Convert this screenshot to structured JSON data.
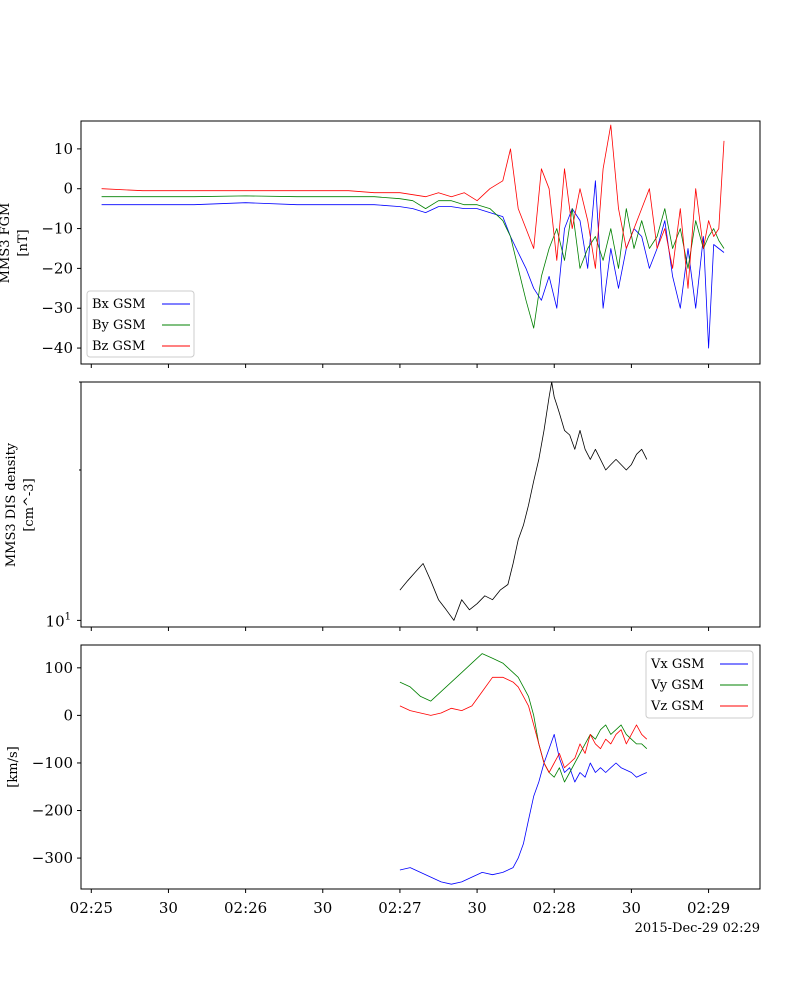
{
  "timestamp_label": "2015-Dec-29 02:29",
  "x_axis": {
    "tick_labels": [
      "02:25",
      "30",
      "02:26",
      "30",
      "02:27",
      "30",
      "02:28",
      "30",
      "02:29"
    ],
    "tick_seconds": [
      0,
      30,
      60,
      90,
      120,
      150,
      180,
      210,
      240
    ],
    "range_seconds": [
      -4,
      260
    ]
  },
  "chart_data": [
    {
      "type": "line",
      "ylabel_lines": [
        "MMS3 FGM",
        "[nT]"
      ],
      "ylim": [
        -44,
        17
      ],
      "yticks": [
        10,
        0,
        -10,
        -20,
        -30,
        -40
      ],
      "ytick_labels": [
        "10",
        "0",
        "−10",
        "−20",
        "−30",
        "−40"
      ],
      "legend_position": "lower-left",
      "series": [
        {
          "name": "Bx GSM",
          "color": "#0000ff",
          "x": [
            4,
            20,
            40,
            60,
            80,
            100,
            110,
            120,
            125,
            130,
            135,
            140,
            145,
            150,
            155,
            160,
            163,
            166,
            169,
            172,
            175,
            178,
            181,
            184,
            187,
            190,
            193,
            196,
            199,
            202,
            205,
            208,
            211,
            214,
            217,
            220,
            223,
            226,
            229,
            232,
            235,
            238,
            240,
            242,
            244,
            246
          ],
          "y": [
            -4,
            -4,
            -4,
            -3.5,
            -4,
            -4,
            -4,
            -4.5,
            -5,
            -6,
            -4.5,
            -4.5,
            -5,
            -5,
            -6,
            -7,
            -12,
            -16,
            -20,
            -25,
            -28,
            -22,
            -30,
            -10,
            -5,
            -8,
            -20,
            2,
            -30,
            -15,
            -25,
            -15,
            -10,
            -12,
            -20,
            -15,
            -8,
            -22,
            -30,
            -15,
            -30,
            -12,
            -40,
            -14,
            -15,
            -16
          ]
        },
        {
          "name": "By GSM",
          "color": "#008000",
          "x": [
            4,
            20,
            40,
            60,
            80,
            100,
            110,
            120,
            125,
            130,
            135,
            140,
            145,
            150,
            155,
            160,
            163,
            166,
            169,
            172,
            175,
            178,
            181,
            184,
            187,
            190,
            193,
            196,
            199,
            202,
            205,
            208,
            211,
            214,
            217,
            220,
            223,
            226,
            229,
            232,
            235,
            238,
            240,
            242,
            244,
            246
          ],
          "y": [
            -2,
            -2,
            -2,
            -1.8,
            -2,
            -2,
            -2,
            -2.5,
            -3,
            -5,
            -3,
            -3,
            -4,
            -4,
            -5,
            -8,
            -12,
            -20,
            -28,
            -35,
            -22,
            -15,
            -10,
            -18,
            -5,
            -20,
            -15,
            -12,
            -18,
            -10,
            -20,
            -5,
            -15,
            -8,
            -15,
            -12,
            -5,
            -15,
            -10,
            -20,
            -8,
            -15,
            -12,
            -10,
            -13,
            -15
          ]
        },
        {
          "name": "Bz GSM",
          "color": "#ff0000",
          "x": [
            4,
            20,
            40,
            60,
            80,
            100,
            110,
            120,
            125,
            130,
            135,
            140,
            145,
            150,
            155,
            160,
            163,
            166,
            169,
            172,
            175,
            178,
            181,
            184,
            187,
            190,
            193,
            196,
            199,
            202,
            205,
            208,
            211,
            214,
            217,
            220,
            223,
            226,
            229,
            232,
            235,
            238,
            240,
            242,
            244,
            246
          ],
          "y": [
            0,
            -0.5,
            -0.5,
            -0.5,
            -0.5,
            -0.5,
            -1,
            -1,
            -1.5,
            -2,
            -1,
            -2,
            -1,
            -3,
            0,
            2,
            10,
            -5,
            -10,
            -15,
            5,
            0,
            -18,
            5,
            -10,
            0,
            -8,
            -20,
            5,
            16,
            -5,
            -15,
            -10,
            -5,
            0,
            -15,
            -10,
            -20,
            -5,
            -25,
            0,
            -15,
            -8,
            -12,
            -10,
            12
          ]
        }
      ]
    },
    {
      "type": "line",
      "ylabel_lines": [
        "MMS3 DIS density",
        "[cm^-3]"
      ],
      "yscale": "log",
      "ylim": [
        9.7,
        30
      ],
      "yticks": [
        10
      ],
      "ytick_label": "10",
      "ytick_label_exp": "1",
      "series": [
        {
          "name": "",
          "color": "#000000",
          "x": [
            120,
            123,
            126,
            129,
            132,
            135,
            138,
            141,
            144,
            147,
            150,
            153,
            156,
            159,
            162,
            164,
            166,
            168,
            170,
            172,
            174,
            176,
            178,
            179,
            180,
            181,
            182,
            184,
            186,
            188,
            190,
            192,
            194,
            196,
            198,
            200,
            202,
            204,
            206,
            208,
            210,
            212,
            214,
            215,
            216
          ],
          "y": [
            11.5,
            12.0,
            12.5,
            13.0,
            12.0,
            11.0,
            10.5,
            10.0,
            11.0,
            10.5,
            10.8,
            11.2,
            11.0,
            11.5,
            11.8,
            13.0,
            14.5,
            15.5,
            17.0,
            19.0,
            21.0,
            24.0,
            28.0,
            30.0,
            28.0,
            27.0,
            26.0,
            24.0,
            23.5,
            22.0,
            24.0,
            22.0,
            21.0,
            22.0,
            21.0,
            20.0,
            20.5,
            21.0,
            20.5,
            20.0,
            20.5,
            21.5,
            22.0,
            21.5,
            21.0
          ]
        }
      ]
    },
    {
      "type": "line",
      "ylabel_lines": [
        "",
        "[km/s]"
      ],
      "ylim": [
        -365,
        148
      ],
      "yticks": [
        100,
        0,
        -100,
        -200,
        -300
      ],
      "ytick_labels": [
        "100",
        "0",
        "−100",
        "−200",
        "−300"
      ],
      "legend_position": "top-right",
      "series": [
        {
          "name": "Vx GSM",
          "color": "#0000ff",
          "x": [
            120,
            124,
            128,
            132,
            136,
            140,
            144,
            148,
            152,
            156,
            160,
            164,
            166,
            168,
            170,
            172,
            174,
            176,
            178,
            180,
            182,
            184,
            186,
            188,
            190,
            192,
            194,
            196,
            198,
            200,
            202,
            204,
            206,
            208,
            210,
            212,
            214,
            216
          ],
          "y": [
            -325,
            -320,
            -330,
            -340,
            -350,
            -355,
            -350,
            -340,
            -330,
            -335,
            -330,
            -320,
            -300,
            -270,
            -220,
            -170,
            -140,
            -100,
            -70,
            -40,
            -90,
            -120,
            -110,
            -140,
            -120,
            -130,
            -100,
            -120,
            -110,
            -120,
            -110,
            -100,
            -110,
            -115,
            -120,
            -130,
            -125,
            -120
          ]
        },
        {
          "name": "Vy GSM",
          "color": "#008000",
          "x": [
            120,
            124,
            128,
            132,
            136,
            140,
            144,
            148,
            152,
            156,
            160,
            164,
            166,
            168,
            170,
            172,
            174,
            176,
            178,
            180,
            182,
            184,
            186,
            188,
            190,
            192,
            194,
            196,
            198,
            200,
            202,
            204,
            206,
            208,
            210,
            212,
            214,
            216
          ],
          "y": [
            70,
            60,
            40,
            30,
            50,
            70,
            90,
            110,
            130,
            120,
            110,
            90,
            80,
            60,
            40,
            0,
            -60,
            -100,
            -120,
            -130,
            -110,
            -140,
            -120,
            -100,
            -80,
            -60,
            -40,
            -50,
            -30,
            -20,
            -40,
            -30,
            -20,
            -40,
            -50,
            -60,
            -60,
            -70
          ]
        },
        {
          "name": "Vz GSM",
          "color": "#ff0000",
          "x": [
            120,
            124,
            128,
            132,
            136,
            140,
            144,
            148,
            152,
            156,
            160,
            164,
            166,
            168,
            170,
            172,
            174,
            176,
            178,
            180,
            182,
            184,
            186,
            188,
            190,
            192,
            194,
            196,
            198,
            200,
            202,
            204,
            206,
            208,
            210,
            212,
            214,
            216
          ],
          "y": [
            20,
            10,
            5,
            0,
            5,
            15,
            10,
            20,
            50,
            80,
            80,
            70,
            60,
            40,
            20,
            -20,
            -60,
            -100,
            -120,
            -100,
            -80,
            -110,
            -100,
            -90,
            -60,
            -80,
            -40,
            -60,
            -70,
            -50,
            -60,
            -40,
            -30,
            -60,
            -40,
            -20,
            -40,
            -50
          ]
        }
      ]
    }
  ]
}
